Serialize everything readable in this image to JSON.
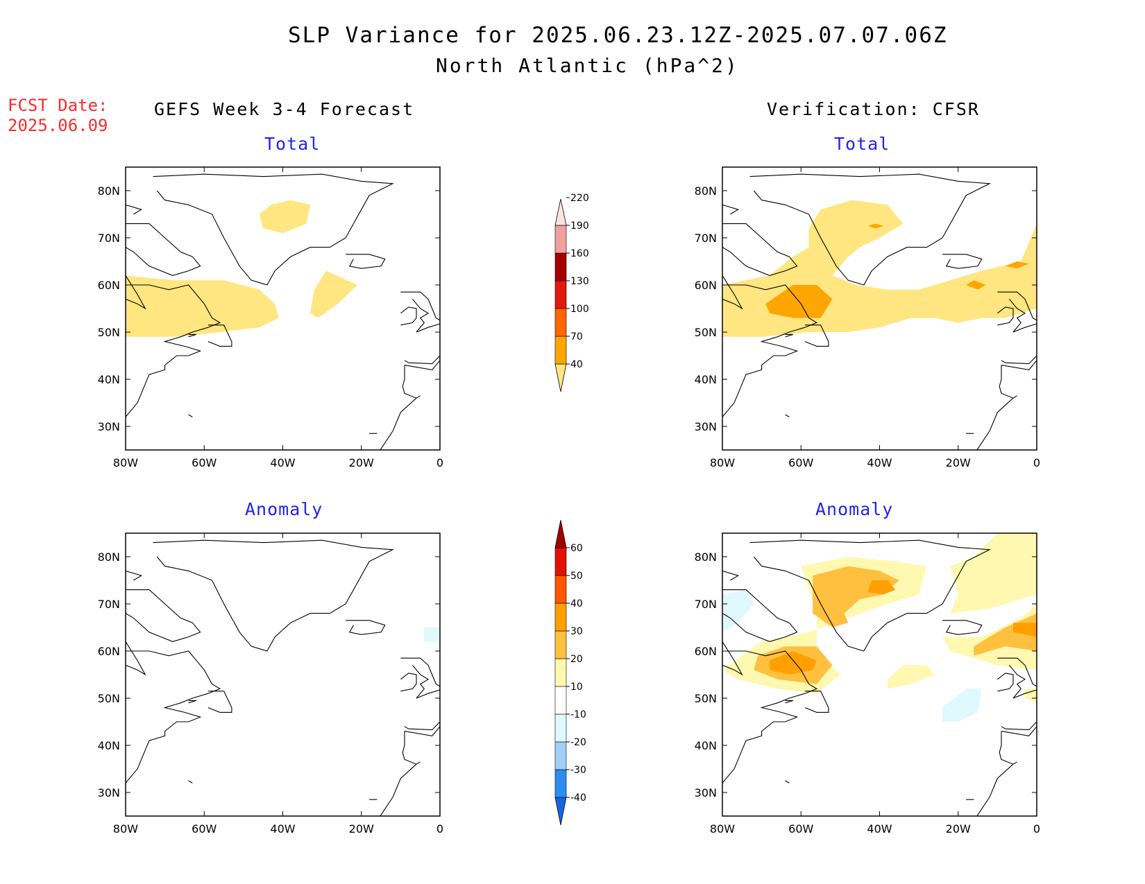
{
  "title": "SLP Variance for 2025.06.23.12Z-2025.07.07.06Z",
  "subtitle": "North Atlantic (hPa^2)",
  "forecast_date": {
    "label": "FCST Date:",
    "value": "2025.06.09"
  },
  "columns": {
    "left": "GEFS Week 3-4 Forecast",
    "right": "Verification: CFSR"
  },
  "panel_titles": {
    "total": "Total",
    "anomaly": "Anomaly"
  },
  "axes": {
    "lat_ticks": [
      "80N",
      "70N",
      "60N",
      "50N",
      "40N",
      "30N"
    ],
    "lat_values": [
      80,
      70,
      60,
      50,
      40,
      30
    ],
    "lon_ticks": [
      "80W",
      "60W",
      "40W",
      "20W",
      "0"
    ],
    "lon_values": [
      -80,
      -60,
      -40,
      -20,
      0
    ],
    "lat_range": [
      25,
      85
    ],
    "lon_range": [
      -80,
      0
    ]
  },
  "total_colorbar": {
    "levels": [
      "40",
      "70",
      "100",
      "130",
      "160",
      "190",
      "220"
    ],
    "colors": [
      "#ffe680",
      "#ffa500",
      "#ff6600",
      "#e11a0e",
      "#a50000",
      "#f0a0a0",
      "#ffe4e4"
    ]
  },
  "anomaly_colorbar": {
    "levels": [
      "-40",
      "-30",
      "-20",
      "-10",
      "10",
      "20",
      "30",
      "40",
      "50",
      "60"
    ],
    "colors": [
      "#1565e0",
      "#2a8ef0",
      "#a0d0f8",
      "#e0f8ff",
      "#ffffff",
      "#fff8b0",
      "#ffc040",
      "#ffa000",
      "#ff5800",
      "#e01200",
      "#a00000"
    ]
  },
  "fields": {
    "gefs_total": [
      {
        "value": 40,
        "color": "#ffe680",
        "path": [
          [
            -80,
            62
          ],
          [
            -68,
            61
          ],
          [
            -55,
            61
          ],
          [
            -46,
            59
          ],
          [
            -42,
            56
          ],
          [
            -41,
            53
          ],
          [
            -46,
            51
          ],
          [
            -56,
            50
          ],
          [
            -66,
            49
          ],
          [
            -80,
            49
          ]
        ]
      },
      {
        "value": 40,
        "color": "#ffe680",
        "path": [
          [
            -43,
            77
          ],
          [
            -38,
            78
          ],
          [
            -33,
            77
          ],
          [
            -34,
            73
          ],
          [
            -40,
            71
          ],
          [
            -45,
            72
          ],
          [
            -46,
            75
          ]
        ]
      },
      {
        "value": 40,
        "color": "#ffe680",
        "path": [
          [
            -29,
            63
          ],
          [
            -21,
            60
          ],
          [
            -26,
            56
          ],
          [
            -31,
            53
          ],
          [
            -33,
            54
          ],
          [
            -32,
            59
          ]
        ]
      }
    ],
    "cfsr_total": [
      {
        "value": 40,
        "color": "#ffe680",
        "path": [
          [
            -80,
            60
          ],
          [
            -68,
            62
          ],
          [
            -62,
            66
          ],
          [
            -58,
            68
          ],
          [
            -58,
            72
          ],
          [
            -55,
            76
          ],
          [
            -47,
            78
          ],
          [
            -38,
            77
          ],
          [
            -34,
            73
          ],
          [
            -40,
            70
          ],
          [
            -45,
            68
          ],
          [
            -48,
            66
          ],
          [
            -52,
            62
          ],
          [
            -46,
            60
          ],
          [
            -38,
            59
          ],
          [
            -30,
            59
          ],
          [
            -22,
            61
          ],
          [
            -14,
            63
          ],
          [
            -4,
            65
          ],
          [
            0,
            73
          ],
          [
            0,
            55
          ],
          [
            -8,
            53
          ],
          [
            -14,
            53
          ],
          [
            -20,
            52
          ],
          [
            -26,
            53
          ],
          [
            -32,
            53
          ],
          [
            -40,
            51
          ],
          [
            -48,
            50
          ],
          [
            -58,
            50
          ],
          [
            -70,
            49
          ],
          [
            -80,
            49
          ]
        ]
      },
      {
        "value": 70,
        "color": "#ffa500",
        "path": [
          [
            -69,
            56
          ],
          [
            -62,
            60
          ],
          [
            -56,
            60
          ],
          [
            -52,
            57
          ],
          [
            -55,
            53
          ],
          [
            -62,
            53
          ],
          [
            -68,
            54
          ]
        ]
      },
      {
        "value": 70,
        "color": "#ffa500",
        "path": [
          [
            -5,
            65
          ],
          [
            -2,
            64.5
          ],
          [
            -5,
            63.5
          ],
          [
            -8,
            64
          ]
        ]
      },
      {
        "value": 70,
        "color": "#ffa500",
        "path": [
          [
            -16,
            61
          ],
          [
            -13,
            60
          ],
          [
            -15,
            59
          ],
          [
            -18,
            60
          ]
        ]
      },
      {
        "value": 70,
        "color": "#ffa500",
        "path": [
          [
            -41,
            73
          ],
          [
            -39,
            72.5
          ],
          [
            -41,
            72
          ],
          [
            -43,
            72.5
          ]
        ]
      }
    ],
    "gefs_anomaly": [
      {
        "value": -10,
        "color": "#e0f8ff",
        "path": [
          [
            -4,
            65
          ],
          [
            0,
            65
          ],
          [
            0,
            62
          ],
          [
            -4,
            62
          ]
        ]
      }
    ],
    "cfsr_anomaly": [
      {
        "value": 10,
        "color": "#fff8b0",
        "path": [
          [
            -60,
            78
          ],
          [
            -48,
            80
          ],
          [
            -36,
            79
          ],
          [
            -28,
            78
          ],
          [
            -30,
            72
          ],
          [
            -38,
            70
          ],
          [
            -48,
            67
          ],
          [
            -58,
            64
          ],
          [
            -70,
            62
          ],
          [
            -80,
            56
          ],
          [
            -76,
            54
          ],
          [
            -66,
            52
          ],
          [
            -56,
            51
          ],
          [
            -50,
            55
          ],
          [
            -56,
            60
          ],
          [
            -56,
            68
          ]
        ]
      },
      {
        "value": 20,
        "color": "#ffc040",
        "path": [
          [
            -57,
            76
          ],
          [
            -48,
            78
          ],
          [
            -40,
            77
          ],
          [
            -35,
            75
          ],
          [
            -39,
            72
          ],
          [
            -45,
            71
          ],
          [
            -49,
            68
          ],
          [
            -48,
            66
          ],
          [
            -52,
            65
          ],
          [
            -57,
            68
          ]
        ]
      },
      {
        "value": 20,
        "color": "#ffc040",
        "path": [
          [
            -71,
            59
          ],
          [
            -64,
            61
          ],
          [
            -56,
            61
          ],
          [
            -52,
            57
          ],
          [
            -56,
            53
          ],
          [
            -66,
            54
          ],
          [
            -72,
            56
          ]
        ]
      },
      {
        "value": 30,
        "color": "#ffa000",
        "path": [
          [
            -42,
            75
          ],
          [
            -38,
            75
          ],
          [
            -36,
            73
          ],
          [
            -39,
            72
          ],
          [
            -43,
            72.5
          ]
        ]
      },
      {
        "value": 30,
        "color": "#ffa000",
        "path": [
          [
            -68,
            58
          ],
          [
            -62,
            60
          ],
          [
            -56,
            58
          ],
          [
            -57,
            56
          ],
          [
            -63,
            55
          ],
          [
            -68,
            56
          ]
        ]
      },
      {
        "value": 10,
        "color": "#fff8b0",
        "path": [
          [
            -22,
            68
          ],
          [
            -12,
            69
          ],
          [
            0,
            72
          ],
          [
            0,
            85
          ],
          [
            -10,
            85
          ],
          [
            -16,
            80
          ],
          [
            -22,
            78
          ],
          [
            -20,
            72
          ]
        ]
      },
      {
        "value": 10,
        "color": "#fff8b0",
        "path": [
          [
            -24,
            63
          ],
          [
            -14,
            63
          ],
          [
            -4,
            67
          ],
          [
            0,
            70
          ],
          [
            0,
            56
          ],
          [
            -10,
            57
          ],
          [
            -22,
            60
          ]
        ]
      },
      {
        "value": 20,
        "color": "#ffc040",
        "path": [
          [
            -16,
            61
          ],
          [
            -8,
            65
          ],
          [
            0,
            68
          ],
          [
            0,
            60
          ],
          [
            -8,
            61
          ],
          [
            -16,
            59
          ]
        ]
      },
      {
        "value": 30,
        "color": "#ffa000",
        "path": [
          [
            -6,
            66
          ],
          [
            0,
            66
          ],
          [
            0,
            63
          ],
          [
            -6,
            64
          ]
        ]
      },
      {
        "value": 10,
        "color": "#fff8b0",
        "path": [
          [
            -34,
            57
          ],
          [
            -28,
            57
          ],
          [
            -26,
            55
          ],
          [
            -32,
            53
          ],
          [
            -38,
            52
          ],
          [
            -38,
            54
          ]
        ]
      },
      {
        "value": 10,
        "color": "#fff8b0",
        "path": [
          [
            -3,
            52
          ],
          [
            0,
            52
          ],
          [
            0,
            49
          ],
          [
            -3,
            50
          ]
        ]
      },
      {
        "value": -10,
        "color": "#e0f8ff",
        "path": [
          [
            -24,
            48
          ],
          [
            -18,
            52
          ],
          [
            -14,
            52
          ],
          [
            -15,
            47
          ],
          [
            -20,
            45
          ],
          [
            -24,
            45
          ]
        ]
      },
      {
        "value": -10,
        "color": "#e0f8ff",
        "path": [
          [
            -80,
            72
          ],
          [
            -74,
            73
          ],
          [
            -72,
            70
          ],
          [
            -76,
            66
          ],
          [
            -80,
            64
          ]
        ]
      }
    ]
  }
}
